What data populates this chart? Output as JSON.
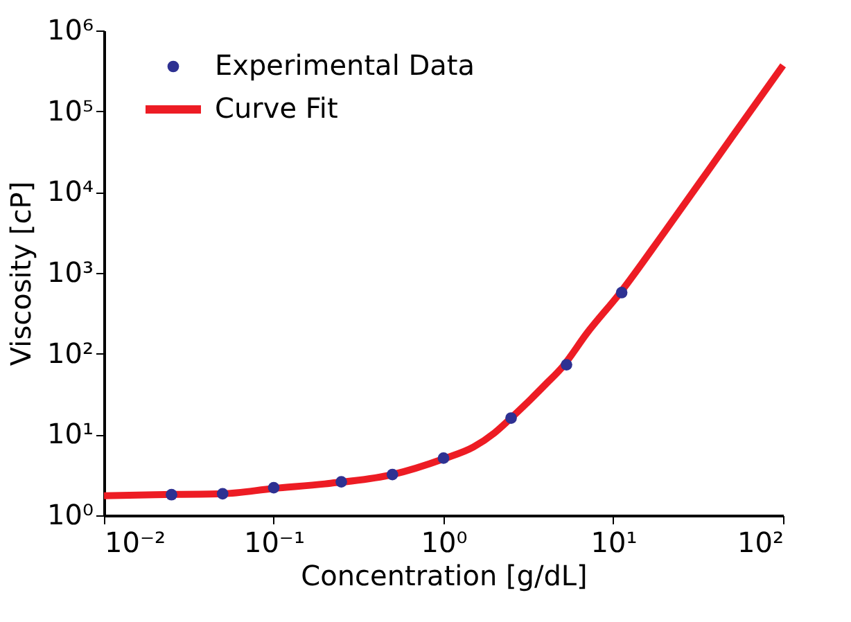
{
  "chart_data": {
    "type": "scatter",
    "xlabel": "Concentration [g/dL]",
    "ylabel": "Viscosity [cP]",
    "log": "xy",
    "grid": false,
    "legend": "top left",
    "xlim": [
      0.01,
      100
    ],
    "ylim": [
      1,
      1000000
    ],
    "xticks": [
      {
        "value": 0.01,
        "label": "10⁻²"
      },
      {
        "value": 0.1,
        "label": "10⁻¹"
      },
      {
        "value": 1,
        "label": "10⁰"
      },
      {
        "value": 10,
        "label": "10¹"
      },
      {
        "value": 100,
        "label": "10²"
      }
    ],
    "yticks": [
      {
        "value": 1,
        "label": "10⁰"
      },
      {
        "value": 10,
        "label": "10¹"
      },
      {
        "value": 100,
        "label": "10²"
      },
      {
        "value": 1000,
        "label": "10³"
      },
      {
        "value": 10000,
        "label": "10⁴"
      },
      {
        "value": 100000,
        "label": "10⁵"
      },
      {
        "value": 1000000,
        "label": "10⁶"
      }
    ],
    "series": [
      {
        "name": "Experimental Data",
        "type": "scatter",
        "marker": "circle",
        "color": "#2e3192",
        "x": [
          0.025,
          0.05,
          0.1,
          0.25,
          0.5,
          1,
          2.5,
          5.3,
          11.2
        ],
        "values": [
          1.8,
          1.85,
          2.2,
          2.6,
          3.2,
          5.1,
          16,
          73,
          570
        ]
      },
      {
        "name": "Curve Fit",
        "type": "line",
        "line_style": "solid",
        "color": "#ed1c24",
        "x": [
          0.01,
          0.02,
          0.05,
          0.1,
          0.2,
          0.5,
          1,
          1.5,
          2,
          2.5,
          3,
          4,
          5,
          7,
          11,
          20,
          50,
          100
        ],
        "values": [
          1.75,
          1.8,
          1.85,
          2.15,
          2.45,
          3.2,
          5,
          7,
          10.5,
          16,
          23,
          42,
          68,
          180,
          570,
          3200,
          48000,
          370000
        ]
      }
    ]
  }
}
